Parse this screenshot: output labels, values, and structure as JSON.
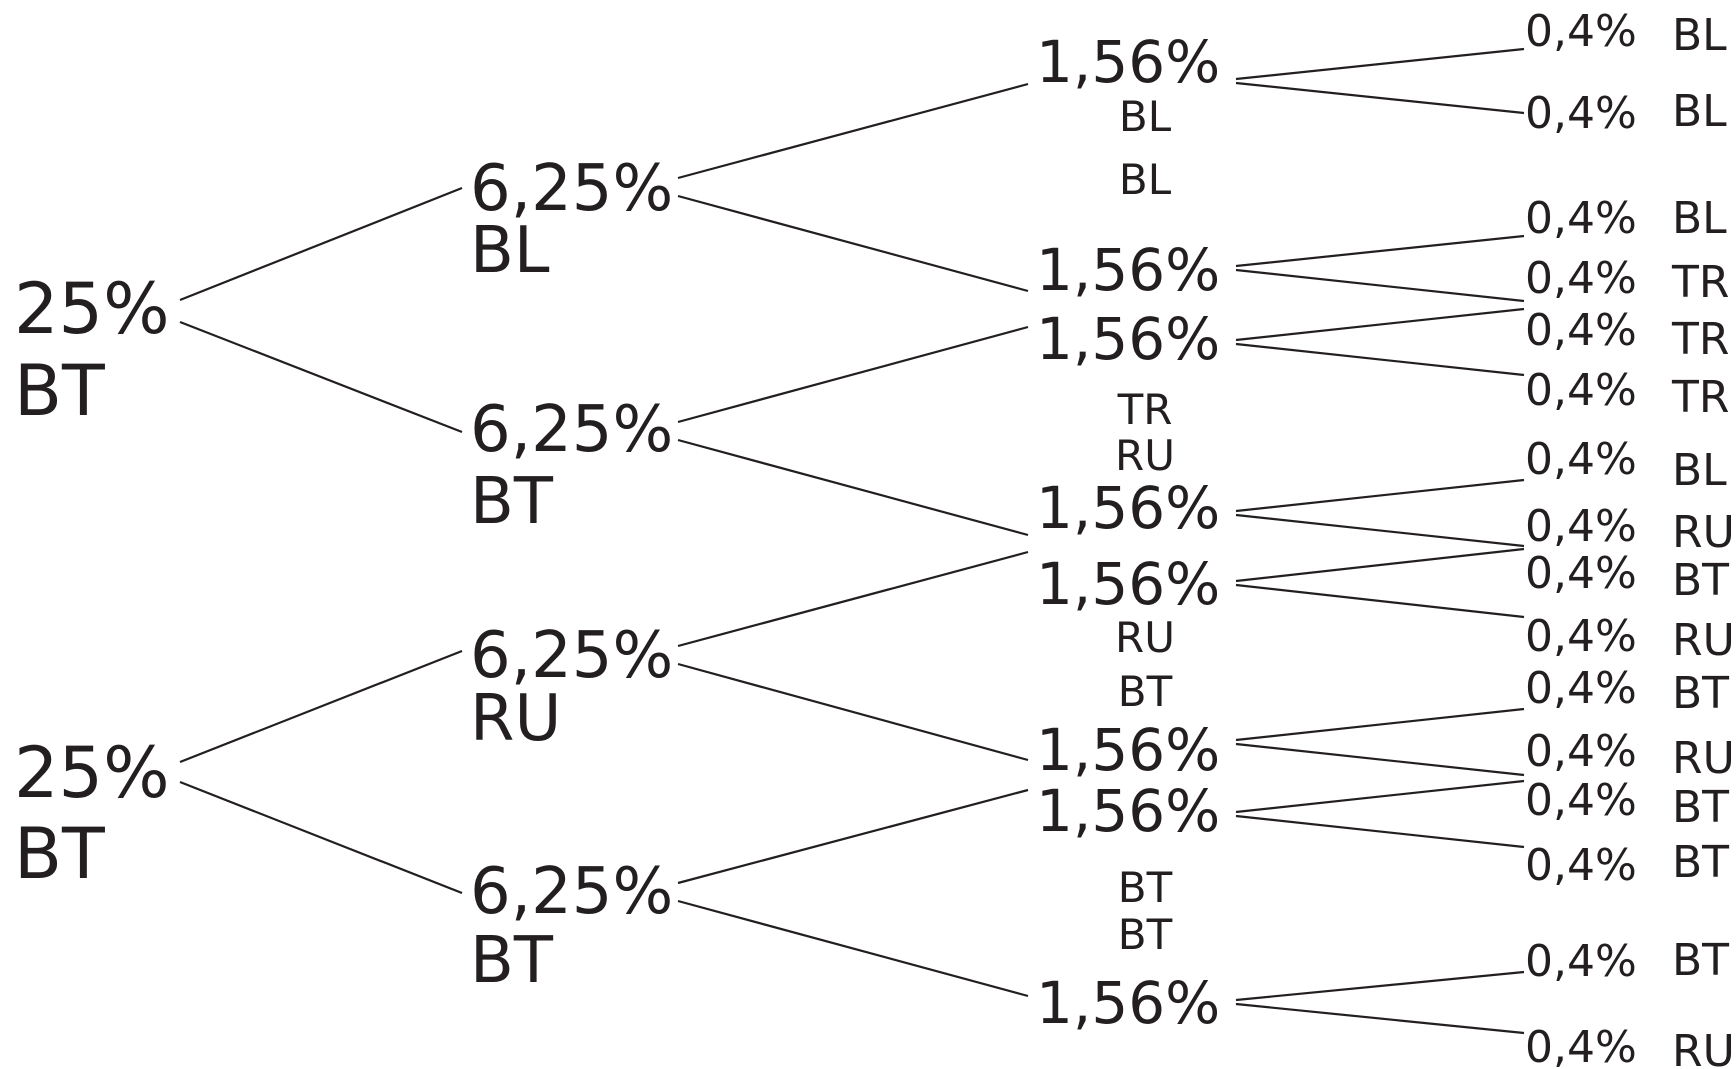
{
  "tree": {
    "root": [
      {
        "prob": "25%",
        "label": "BT"
      },
      {
        "prob": "25%",
        "label": "BT"
      }
    ],
    "level2": [
      {
        "prob": "6,25%",
        "label": "BL"
      },
      {
        "prob": "6,25%",
        "label": "BT"
      },
      {
        "prob": "6,25%",
        "label": "RU"
      },
      {
        "prob": "6,25%",
        "label": "BT"
      }
    ],
    "level3": [
      {
        "prob": "1,56%",
        "label": "BL"
      },
      {
        "prob": "1,56%",
        "label": "BL"
      },
      {
        "prob": "1,56%",
        "label": "TR"
      },
      {
        "prob": "1,56%",
        "label": "RU"
      },
      {
        "prob": "1,56%",
        "label": "RU"
      },
      {
        "prob": "1,56%",
        "label": "BT"
      },
      {
        "prob": "1,56%",
        "label": "BT"
      },
      {
        "prob": "1,56%",
        "label": "BT"
      }
    ],
    "level4": [
      {
        "prob": "0,4%",
        "label": "BL"
      },
      {
        "prob": "0,4%",
        "label": "BL"
      },
      {
        "prob": "0,4%",
        "label": "BL"
      },
      {
        "prob": "0,4%",
        "label": "TR"
      },
      {
        "prob": "0,4%",
        "label": "TR"
      },
      {
        "prob": "0,4%",
        "label": "TR"
      },
      {
        "prob": "0,4%",
        "label": "BL"
      },
      {
        "prob": "0,4%",
        "label": "RU"
      },
      {
        "prob": "0,4%",
        "label": "BT"
      },
      {
        "prob": "0,4%",
        "label": "RU"
      },
      {
        "prob": "0,4%",
        "label": "BT"
      },
      {
        "prob": "0,4%",
        "label": "RU"
      },
      {
        "prob": "0,4%",
        "label": "BT"
      },
      {
        "prob": "0,4%",
        "label": "BT"
      },
      {
        "prob": "0,4%",
        "label": "BT"
      },
      {
        "prob": "0,4%",
        "label": "RU"
      }
    ]
  }
}
